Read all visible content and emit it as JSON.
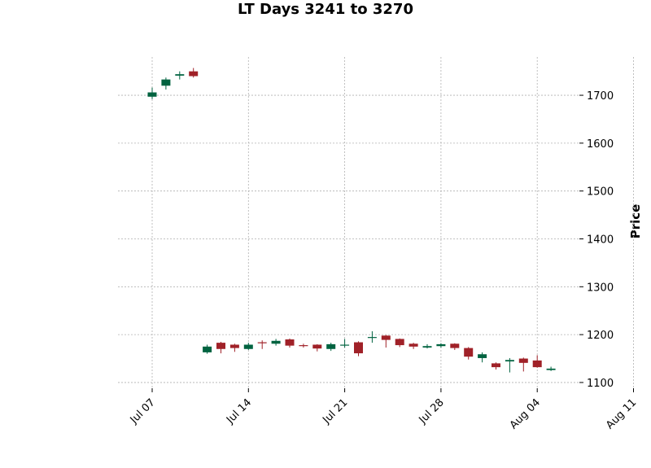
{
  "chart_data": {
    "type": "candlestick",
    "title": "LT Days 3241 to 3270",
    "ylabel": "Price",
    "xlabel": "",
    "ylim": [
      1088,
      1780
    ],
    "yticks": [
      1100,
      1200,
      1300,
      1400,
      1500,
      1600,
      1700
    ],
    "ytick_labels": [
      "1100",
      "1200",
      "1300",
      "1400",
      "1500",
      "1600",
      "1700"
    ],
    "xticks": [
      {
        "date": "2026-07-07",
        "label": "Jul 07"
      },
      {
        "date": "2026-07-14",
        "label": "Jul 14"
      },
      {
        "date": "2026-07-21",
        "label": "Jul 21"
      },
      {
        "date": "2026-07-28",
        "label": "Jul 28"
      },
      {
        "date": "2026-08-04",
        "label": "Aug 04"
      },
      {
        "date": "2026-08-11",
        "label": "Aug 11"
      },
      {
        "date": "2026-08-18",
        "label": ""
      }
    ],
    "grid": true,
    "up_color": "#006340",
    "down_color": "#a02128",
    "candles": [
      {
        "date": "2026-07-07",
        "open": 1697,
        "high": 1716,
        "low": 1692,
        "close": 1706
      },
      {
        "date": "2026-07-08",
        "open": 1720,
        "high": 1737,
        "low": 1712,
        "close": 1733
      },
      {
        "date": "2026-07-09",
        "open": 1741,
        "high": 1750,
        "low": 1733,
        "close": 1744
      },
      {
        "date": "2026-07-10",
        "open": 1750,
        "high": 1757,
        "low": 1737,
        "close": 1740
      },
      {
        "date": "2026-07-11",
        "open": 1163,
        "high": 1179,
        "low": 1160,
        "close": 1175
      },
      {
        "date": "2026-07-12",
        "open": 1183,
        "high": 1185,
        "low": 1161,
        "close": 1170
      },
      {
        "date": "2026-07-13",
        "open": 1179,
        "high": 1181,
        "low": 1164,
        "close": 1172
      },
      {
        "date": "2026-07-14",
        "open": 1170,
        "high": 1183,
        "low": 1168,
        "close": 1179
      },
      {
        "date": "2026-07-15",
        "open": 1184,
        "high": 1188,
        "low": 1170,
        "close": 1182
      },
      {
        "date": "2026-07-16",
        "open": 1181,
        "high": 1191,
        "low": 1177,
        "close": 1187
      },
      {
        "date": "2026-07-17",
        "open": 1190,
        "high": 1192,
        "low": 1173,
        "close": 1177
      },
      {
        "date": "2026-07-18",
        "open": 1178,
        "high": 1181,
        "low": 1173,
        "close": 1176
      },
      {
        "date": "2026-07-19",
        "open": 1179,
        "high": 1180,
        "low": 1165,
        "close": 1171
      },
      {
        "date": "2026-07-20",
        "open": 1170,
        "high": 1183,
        "low": 1166,
        "close": 1180
      },
      {
        "date": "2026-07-21",
        "open": 1177,
        "high": 1191,
        "low": 1173,
        "close": 1179
      },
      {
        "date": "2026-07-22",
        "open": 1184,
        "high": 1186,
        "low": 1155,
        "close": 1161
      },
      {
        "date": "2026-07-23",
        "open": 1193,
        "high": 1207,
        "low": 1183,
        "close": 1195
      },
      {
        "date": "2026-07-24",
        "open": 1198,
        "high": 1199,
        "low": 1173,
        "close": 1189
      },
      {
        "date": "2026-07-25",
        "open": 1191,
        "high": 1192,
        "low": 1174,
        "close": 1178
      },
      {
        "date": "2026-07-26",
        "open": 1181,
        "high": 1183,
        "low": 1170,
        "close": 1175
      },
      {
        "date": "2026-07-27",
        "open": 1173,
        "high": 1180,
        "low": 1171,
        "close": 1176
      },
      {
        "date": "2026-07-28",
        "open": 1176,
        "high": 1182,
        "low": 1173,
        "close": 1180
      },
      {
        "date": "2026-07-29",
        "open": 1181,
        "high": 1182,
        "low": 1168,
        "close": 1172
      },
      {
        "date": "2026-07-30",
        "open": 1172,
        "high": 1174,
        "low": 1148,
        "close": 1154
      },
      {
        "date": "2026-07-31",
        "open": 1151,
        "high": 1163,
        "low": 1142,
        "close": 1159
      },
      {
        "date": "2026-08-01",
        "open": 1140,
        "high": 1142,
        "low": 1127,
        "close": 1132
      },
      {
        "date": "2026-08-02",
        "open": 1144,
        "high": 1151,
        "low": 1121,
        "close": 1147
      },
      {
        "date": "2026-08-03",
        "open": 1150,
        "high": 1152,
        "low": 1123,
        "close": 1141
      },
      {
        "date": "2026-08-04",
        "open": 1146,
        "high": 1157,
        "low": 1131,
        "close": 1132
      },
      {
        "date": "2026-08-05",
        "open": 1126,
        "high": 1133,
        "low": 1124,
        "close": 1129
      }
    ]
  }
}
